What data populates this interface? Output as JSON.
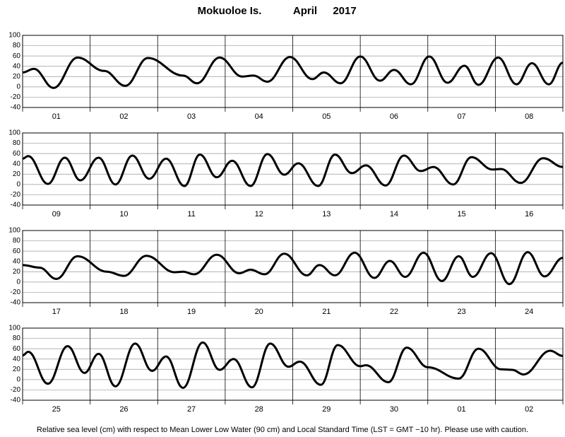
{
  "header": {
    "station": "Mokuoloe Is.",
    "month": "April",
    "year": "2017"
  },
  "footer": "Relative sea level (cm) with respect to Mean Lower Low Water (90 cm) and Local Standard Time (LST = GMT −10 hr). Please use with caution.",
  "chart_data": [
    {
      "type": "line",
      "categories": [
        "01",
        "02",
        "03",
        "04",
        "05",
        "06",
        "07",
        "08"
      ],
      "xlim": [
        0,
        192
      ],
      "xticks": [
        0,
        24,
        48,
        72,
        96,
        120,
        144,
        168,
        192
      ],
      "ylim": [
        -40,
        100
      ],
      "yticks": [
        -40,
        -20,
        0,
        20,
        40,
        60,
        80,
        100
      ],
      "x": [
        0,
        4,
        11,
        19.5,
        29,
        36.5,
        44.5,
        57,
        62,
        70,
        78,
        82,
        87,
        95,
        103,
        107,
        113,
        120,
        127,
        132,
        138,
        144.5,
        151,
        157,
        162,
        169,
        175.5,
        181,
        187,
        192
      ],
      "series": [
        {
          "color": "#000000",
          "values": [
            28,
            35,
            -2,
            57,
            31,
            2,
            56,
            22,
            7,
            57,
            20,
            22,
            10,
            58,
            15,
            28,
            7,
            59,
            12,
            33,
            5,
            59,
            8,
            41,
            4,
            57,
            5,
            46,
            5,
            47
          ]
        }
      ]
    },
    {
      "type": "line",
      "categories": [
        "09",
        "10",
        "11",
        "12",
        "13",
        "14",
        "15",
        "16"
      ],
      "xlim": [
        0,
        192
      ],
      "xticks": [
        0,
        24,
        48,
        72,
        96,
        120,
        144,
        168,
        192
      ],
      "ylim": [
        -40,
        100
      ],
      "yticks": [
        -40,
        -20,
        0,
        20,
        40,
        60,
        80,
        100
      ],
      "x": [
        0,
        2,
        9,
        15,
        20.5,
        27,
        33,
        39,
        45,
        51,
        57.5,
        63,
        69,
        74.5,
        81,
        87,
        93,
        98,
        105,
        111,
        117,
        122,
        129,
        135.5,
        141.5,
        146,
        153,
        159.5,
        167,
        170,
        177,
        185,
        192
      ],
      "series": [
        {
          "color": "#000000",
          "values": [
            50,
            55,
            1,
            52,
            8,
            52,
            0,
            56,
            11,
            50,
            -3,
            58,
            14,
            46,
            -3,
            59,
            19,
            41,
            -3,
            58,
            22,
            37,
            -2,
            56,
            26,
            34,
            0,
            53,
            29,
            30,
            3,
            51,
            34
          ]
        }
      ]
    },
    {
      "type": "line",
      "categories": [
        "17",
        "18",
        "19",
        "20",
        "21",
        "22",
        "23",
        "24"
      ],
      "xlim": [
        0,
        192
      ],
      "xticks": [
        0,
        24,
        48,
        72,
        96,
        120,
        144,
        168,
        192
      ],
      "ylim": [
        -40,
        100
      ],
      "yticks": [
        -40,
        -20,
        0,
        20,
        40,
        60,
        80,
        100
      ],
      "x": [
        0,
        6,
        12,
        19.5,
        30,
        36,
        44,
        54,
        57,
        61,
        69,
        77,
        81,
        86,
        93,
        101,
        105.5,
        111,
        118,
        125,
        130.5,
        136,
        142.5,
        149,
        155,
        160,
        166.5,
        173,
        179.5,
        185.5,
        192
      ],
      "series": [
        {
          "color": "#000000",
          "values": [
            33,
            28,
            6,
            50,
            20,
            12,
            51,
            19,
            20,
            15,
            53,
            17,
            24,
            15,
            55,
            13,
            33,
            13,
            57,
            8,
            41,
            10,
            57,
            2,
            50,
            10,
            56,
            -4,
            58,
            11,
            47
          ]
        }
      ]
    },
    {
      "type": "line",
      "categories": [
        "25",
        "26",
        "27",
        "28",
        "29",
        "30",
        "01",
        "02"
      ],
      "xlim": [
        0,
        192
      ],
      "xticks": [
        0,
        24,
        48,
        72,
        96,
        120,
        144,
        168,
        192
      ],
      "ylim": [
        -40,
        100
      ],
      "yticks": [
        -40,
        -20,
        0,
        20,
        40,
        60,
        80,
        100
      ],
      "x": [
        0,
        2,
        9,
        16,
        22,
        27,
        33,
        40,
        46,
        51,
        57,
        64,
        70,
        75,
        81.5,
        88,
        94.5,
        98.5,
        106,
        112,
        120,
        122,
        130,
        136.5,
        144,
        155,
        162,
        170,
        174,
        178,
        187.5,
        192
      ],
      "series": [
        {
          "color": "#000000",
          "values": [
            47,
            54,
            -8,
            65,
            13,
            50,
            -13,
            70,
            17,
            45,
            -16,
            72,
            19,
            40,
            -15,
            70,
            25,
            35,
            -10,
            67,
            26,
            28,
            -5,
            62,
            24,
            2,
            60,
            20,
            19,
            10,
            56,
            46
          ]
        }
      ]
    }
  ]
}
